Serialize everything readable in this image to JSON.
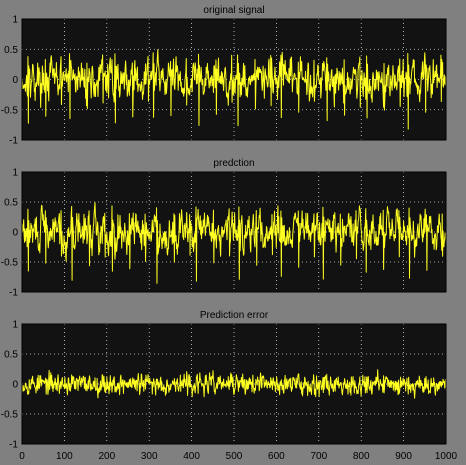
{
  "figure": {
    "background": "#808080",
    "axes_background": "#121212",
    "grid_color": "#d8d8d8",
    "line_color": "#ffff22"
  },
  "chart_data": [
    {
      "type": "line",
      "title": "original signal",
      "xlim": [
        0,
        1000
      ],
      "ylim": [
        -1,
        1
      ],
      "xticks": [],
      "yticks": [
        1,
        0.5,
        0,
        -0.5,
        -1
      ],
      "ytick_labels": [
        "1",
        "0.5",
        "0",
        "-0.5",
        "-1"
      ],
      "grid": true,
      "series": [
        {
          "seed": 17,
          "n": 1000,
          "amplitude": 0.17,
          "smoothing": 0.55,
          "spike_period": 100,
          "spike_points": [
            [
              0,
              0.42
            ],
            [
              1,
              -0.72
            ],
            [
              2,
              0.25
            ],
            [
              41,
              0.3
            ],
            [
              42,
              -0.55
            ],
            [
              78,
              0.36
            ],
            [
              79,
              -0.42
            ]
          ],
          "clip": [
            -0.96,
            0.98
          ]
        }
      ]
    },
    {
      "type": "line",
      "title": "predction",
      "xlim": [
        0,
        1000
      ],
      "ylim": [
        -1,
        1
      ],
      "xticks": [],
      "yticks": [
        1,
        0.5,
        0,
        -0.5,
        -1
      ],
      "ytick_labels": [
        "1",
        "0.5",
        "0",
        "-0.5",
        "-1"
      ],
      "grid": true,
      "series": [
        {
          "seed": 29,
          "n": 1000,
          "amplitude": 0.17,
          "smoothing": 0.55,
          "spike_period": 100,
          "spike_points": [
            [
              0,
              0.4
            ],
            [
              1,
              -0.75
            ],
            [
              2,
              0.22
            ],
            [
              41,
              0.32
            ],
            [
              42,
              -0.58
            ],
            [
              78,
              0.34
            ],
            [
              79,
              -0.44
            ]
          ],
          "clip": [
            -0.98,
            0.98
          ]
        }
      ]
    },
    {
      "type": "line",
      "title": "Prediction error",
      "xlim": [
        0,
        1000
      ],
      "ylim": [
        -1,
        1
      ],
      "xticks": [
        0,
        100,
        200,
        300,
        400,
        500,
        600,
        700,
        800,
        900,
        1000
      ],
      "xtick_labels": [
        "0",
        "100",
        "200",
        "300",
        "400",
        "500",
        "600",
        "700",
        "800",
        "900",
        "1000"
      ],
      "yticks": [
        1,
        0.5,
        0,
        -0.5,
        -1
      ],
      "ytick_labels": [
        "1",
        "0.5",
        "0",
        "-0.5",
        "-1"
      ],
      "grid": true,
      "series": [
        {
          "seed": 53,
          "n": 1000,
          "amplitude": 0.06,
          "smoothing": 0.25,
          "spike_period": 0,
          "spike_points": [],
          "clip": [
            -0.3,
            0.25
          ]
        }
      ]
    }
  ]
}
